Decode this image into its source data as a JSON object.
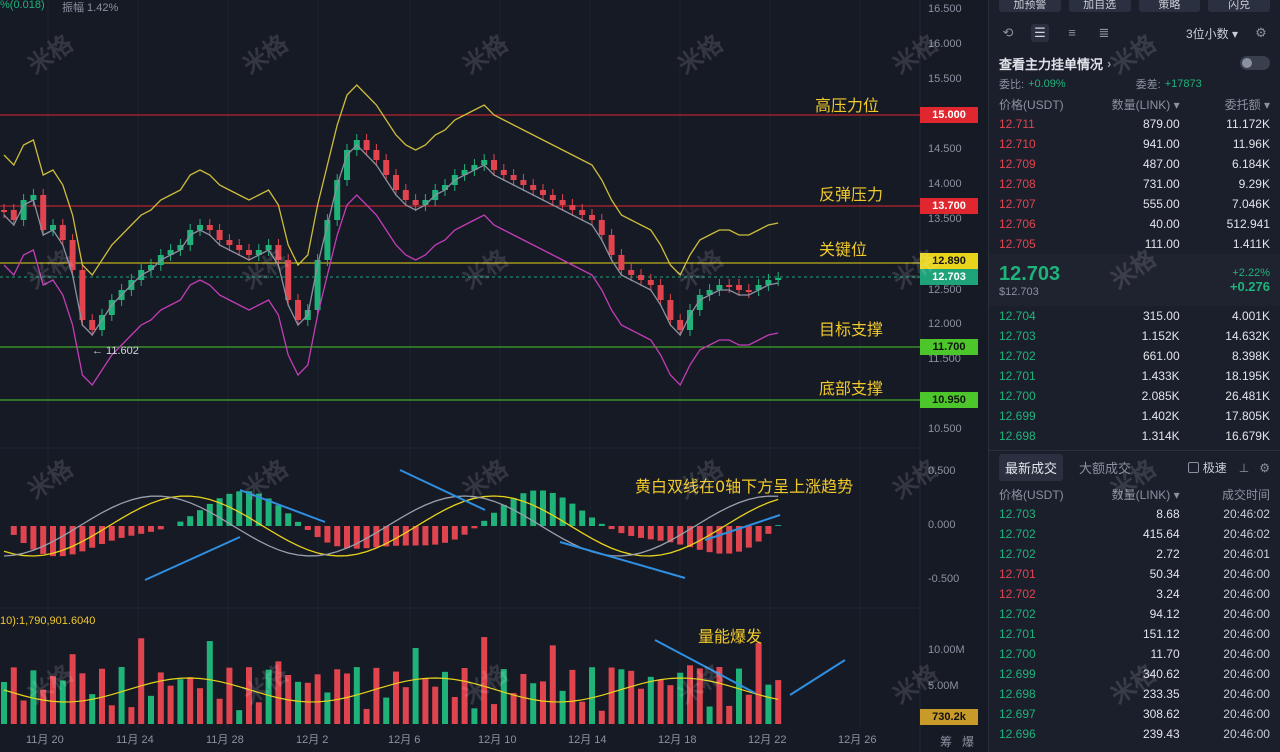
{
  "header": {
    "top_left_1": "%(0.018)",
    "top_left_2": "振幅 1.42%",
    "volume_label": "10):1,790,901.6040"
  },
  "watermark_text": "米格",
  "annotations": {
    "high_resistance": "高压力位",
    "rebound_resistance": "反弹压力",
    "key_level": "关键位",
    "target_support": "目标支撑",
    "bottom_support": "底部支撑",
    "macd_note": "黄白双线在0轴下方呈上涨趋势",
    "volume_note": "量能爆发",
    "low_marker": "← 11.602"
  },
  "price_levels": [
    {
      "label": "15.000",
      "color": "#e0262e"
    },
    {
      "label": "13.700",
      "color": "#e0262e"
    },
    {
      "label": "12.890",
      "color": "#e8d41a"
    },
    {
      "label": "12.703",
      "color": "#1fa37a"
    },
    {
      "label": "11.700",
      "color": "#4cc62a"
    },
    {
      "label": "10.950",
      "color": "#4cc62a"
    }
  ],
  "y_axis": [
    "16.500",
    "16.000",
    "15.500",
    "14.500",
    "14.000",
    "13.500",
    "12.500",
    "12.000",
    "11.500",
    "10.500"
  ],
  "macd_axis": [
    "0.500",
    "0.000",
    "-0.500"
  ],
  "vol_axis": [
    "10.00M",
    "5.00M"
  ],
  "vol_tag": "730.2k",
  "x_axis": [
    "11月 20",
    "11月 24",
    "11月 28",
    "12月 2",
    "12月 6",
    "12月 10",
    "12月 14",
    "12月 18",
    "12月 22",
    "12月 26"
  ],
  "bottom_right": [
    "筹",
    "爆"
  ],
  "panel": {
    "top_buttons": [
      "加预警",
      "加自选",
      "策略",
      "闪兑"
    ],
    "decimals": "3位小数",
    "order_title": "查看主力挂单情况",
    "ratio_label": "委比:",
    "ratio_value": "+0.09%",
    "diff_label": "委差:",
    "diff_value": "+17873",
    "ob_headers": [
      "价格(USDT)",
      "数量(LINK)",
      "委托额"
    ],
    "asks": [
      {
        "price": "12.711",
        "qty": "879.00",
        "amt": "11.172K"
      },
      {
        "price": "12.710",
        "qty": "941.00",
        "amt": "11.96K"
      },
      {
        "price": "12.709",
        "qty": "487.00",
        "amt": "6.184K"
      },
      {
        "price": "12.708",
        "qty": "731.00",
        "amt": "9.29K"
      },
      {
        "price": "12.707",
        "qty": "555.00",
        "amt": "7.046K"
      },
      {
        "price": "12.706",
        "qty": "40.00",
        "amt": "512.941"
      },
      {
        "price": "12.705",
        "qty": "111.00",
        "amt": "1.411K"
      }
    ],
    "last_price": "12.703",
    "last_price_usd": "$12.703",
    "change_pct": "+2.22%",
    "change_abs": "+0.276",
    "bids": [
      {
        "price": "12.704",
        "qty": "315.00",
        "amt": "4.001K"
      },
      {
        "price": "12.703",
        "qty": "1.152K",
        "amt": "14.632K"
      },
      {
        "price": "12.702",
        "qty": "661.00",
        "amt": "8.398K"
      },
      {
        "price": "12.701",
        "qty": "1.433K",
        "amt": "18.195K"
      },
      {
        "price": "12.700",
        "qty": "2.085K",
        "amt": "26.481K"
      },
      {
        "price": "12.699",
        "qty": "1.402K",
        "amt": "17.805K"
      },
      {
        "price": "12.698",
        "qty": "1.314K",
        "amt": "16.679K"
      }
    ],
    "tabs": [
      "最新成交",
      "大额成交"
    ],
    "fast_label": "极速",
    "trade_headers": [
      "价格(USDT)",
      "数量(LINK)",
      "成交时间"
    ],
    "trades": [
      {
        "price": "12.703",
        "qty": "8.68",
        "time": "20:46:02",
        "side": "g"
      },
      {
        "price": "12.702",
        "qty": "415.64",
        "time": "20:46:02",
        "side": "g"
      },
      {
        "price": "12.702",
        "qty": "2.72",
        "time": "20:46:01",
        "side": "g"
      },
      {
        "price": "12.701",
        "qty": "50.34",
        "time": "20:46:00",
        "side": "r"
      },
      {
        "price": "12.702",
        "qty": "3.24",
        "time": "20:46:00",
        "side": "r"
      },
      {
        "price": "12.702",
        "qty": "94.12",
        "time": "20:46:00",
        "side": "g"
      },
      {
        "price": "12.701",
        "qty": "151.12",
        "time": "20:46:00",
        "side": "g"
      },
      {
        "price": "12.700",
        "qty": "11.70",
        "time": "20:46:00",
        "side": "g"
      },
      {
        "price": "12.699",
        "qty": "340.62",
        "time": "20:46:00",
        "side": "g"
      },
      {
        "price": "12.698",
        "qty": "233.35",
        "time": "20:46:00",
        "side": "g"
      },
      {
        "price": "12.697",
        "qty": "308.62",
        "time": "20:46:00",
        "side": "g"
      },
      {
        "price": "12.696",
        "qty": "239.43",
        "time": "20:46:00",
        "side": "g"
      }
    ]
  },
  "colors": {
    "up": "#1fb37a",
    "down": "#e0454f",
    "accent": "#f0c92b"
  }
}
